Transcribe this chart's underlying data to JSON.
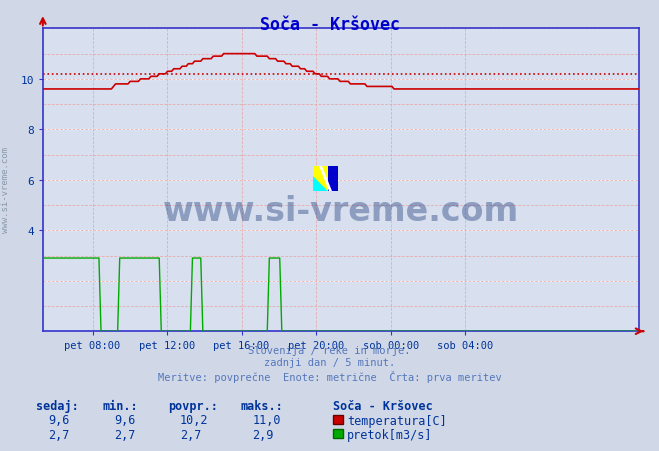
{
  "title": "Soča - Kršovec",
  "title_color": "#0000cc",
  "bg_color": "#d0d8e8",
  "plot_bg_color": "#d8e0f0",
  "grid_color_major": "#ffffff",
  "grid_color_minor": "#e8a0a0",
  "xlabel_ticks": [
    "pet 08:00",
    "pet 12:00",
    "pet 16:00",
    "pet 20:00",
    "sob 00:00",
    "sob 04:00"
  ],
  "xlabel_tick_positions": [
    0.0833,
    0.2083,
    0.3333,
    0.4583,
    0.5833,
    0.7083
  ],
  "ylim": [
    0,
    12
  ],
  "ytick_vals": [
    4,
    6,
    8,
    10
  ],
  "ytick_labels": [
    "4",
    "6",
    "8",
    "10"
  ],
  "temp_avg": 10.2,
  "temp_min": 9.6,
  "temp_max": 11.0,
  "flow_min": 2.7,
  "flow_max": 2.9,
  "temp_color": "#cc0000",
  "flow_color": "#00aa00",
  "avg_line_color": "#cc0000",
  "axis_line_color": "#3333cc",
  "footnote_lines": [
    "Slovenija / reke in morje.",
    "zadnji dan / 5 minut.",
    "Meritve: povprečne  Enote: metrične  Črta: prva meritev"
  ],
  "footnote_color": "#5577bb",
  "watermark_text": "www.si-vreme.com",
  "watermark_color": "#1a3a7a",
  "sidebar_text": "www.si-vreme.com",
  "sidebar_color": "#8899aa",
  "legend_title": "Soča - Kršovec",
  "legend_temp_label": "temperatura[C]",
  "legend_flow_label": "pretok[m3/s]",
  "table_headers": [
    "sedaj:",
    "min.:",
    "povpr.:",
    "maks.:"
  ],
  "table_temp_values": [
    "9,6",
    "9,6",
    "10,2",
    "11,0"
  ],
  "table_flow_values": [
    "2,7",
    "2,7",
    "2,7",
    "2,9"
  ],
  "table_color": "#003399",
  "logo_yellow": "#ffff00",
  "logo_cyan": "#00ffff",
  "logo_blue": "#0000cc",
  "logo_navy": "#000088"
}
